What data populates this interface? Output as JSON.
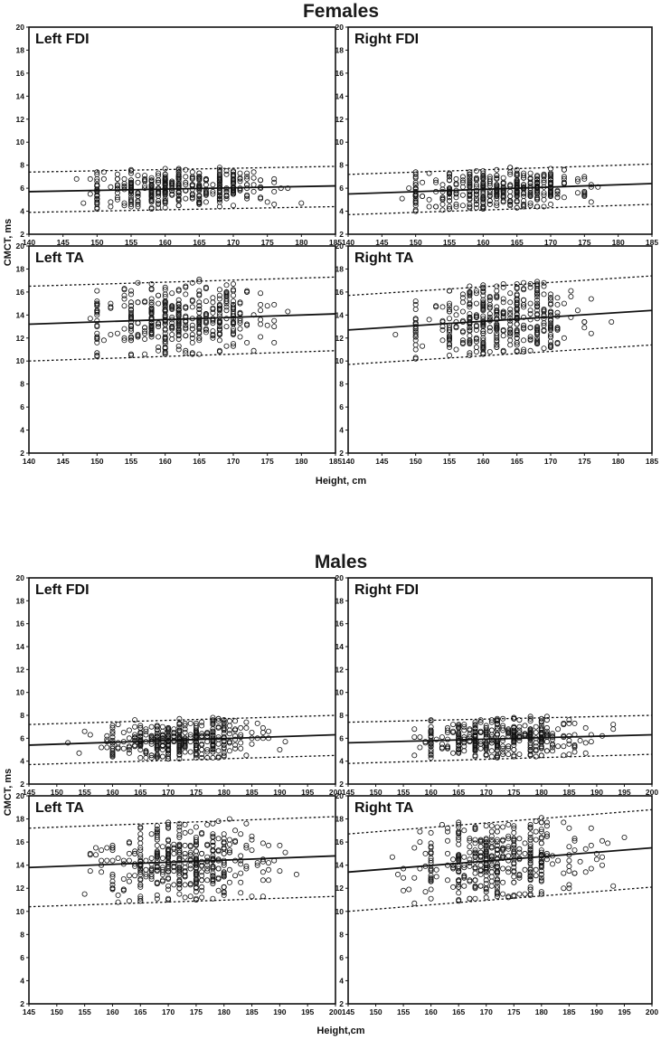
{
  "figure": {
    "sections": [
      {
        "title": "Females",
        "xlabel": "Height, cm",
        "ylabel": "CMCT, ms"
      },
      {
        "title": "Males",
        "xlabel": "Height,cm",
        "ylabel": "CMCT, ms"
      }
    ]
  },
  "chart_data": [
    {
      "type": "scatter",
      "section": "Females",
      "panel_label": "Left FDI",
      "xlim": [
        140,
        185
      ],
      "ylim": [
        2,
        20
      ],
      "xticks": [
        140,
        145,
        150,
        155,
        160,
        165,
        170,
        175,
        180,
        185
      ],
      "yticks": [
        2,
        4,
        6,
        8,
        10,
        12,
        14,
        16,
        18,
        20
      ],
      "x_range": [
        145,
        181
      ],
      "y_mean": 6.0,
      "y_sd": 0.85,
      "regression": {
        "x": [
          140,
          185
        ],
        "y": [
          5.7,
          6.2
        ]
      },
      "upper_limit": {
        "x": [
          140,
          185
        ],
        "y": [
          7.4,
          7.9
        ]
      },
      "lower_limit": {
        "x": [
          140,
          185
        ],
        "y": [
          3.9,
          4.4
        ]
      }
    },
    {
      "type": "scatter",
      "section": "Females",
      "panel_label": "Right FDI",
      "xlim": [
        140,
        185
      ],
      "ylim": [
        2,
        20
      ],
      "xticks": [
        140,
        145,
        150,
        155,
        160,
        165,
        170,
        175,
        180,
        185
      ],
      "yticks": [
        2,
        4,
        6,
        8,
        10,
        12,
        14,
        16,
        18,
        20
      ],
      "x_range": [
        145,
        181
      ],
      "y_mean": 6.0,
      "y_sd": 0.85,
      "regression": {
        "x": [
          140,
          185
        ],
        "y": [
          5.5,
          6.4
        ]
      },
      "upper_limit": {
        "x": [
          140,
          185
        ],
        "y": [
          7.2,
          8.1
        ]
      },
      "lower_limit": {
        "x": [
          140,
          185
        ],
        "y": [
          3.7,
          4.6
        ]
      }
    },
    {
      "type": "scatter",
      "section": "Females",
      "panel_label": "Left TA",
      "xlim": [
        140,
        185
      ],
      "ylim": [
        2,
        20
      ],
      "xticks": [
        140,
        145,
        150,
        155,
        160,
        165,
        170,
        175,
        180,
        185
      ],
      "yticks": [
        2,
        4,
        6,
        8,
        10,
        12,
        14,
        16,
        18,
        20
      ],
      "x_range": [
        145,
        181
      ],
      "y_mean": 13.6,
      "y_sd": 1.6,
      "regression": {
        "x": [
          140,
          185
        ],
        "y": [
          13.2,
          14.1
        ]
      },
      "upper_limit": {
        "x": [
          140,
          185
        ],
        "y": [
          16.5,
          17.3
        ]
      },
      "lower_limit": {
        "x": [
          140,
          185
        ],
        "y": [
          10.0,
          10.9
        ]
      }
    },
    {
      "type": "scatter",
      "section": "Females",
      "panel_label": "Right TA",
      "xlim": [
        140,
        185
      ],
      "ylim": [
        2,
        20
      ],
      "xticks": [
        140,
        145,
        150,
        155,
        160,
        165,
        170,
        175,
        180,
        185
      ],
      "yticks": [
        2,
        4,
        6,
        8,
        10,
        12,
        14,
        16,
        18,
        20
      ],
      "x_range": [
        145,
        181
      ],
      "y_mean": 13.4,
      "y_sd": 1.6,
      "regression": {
        "x": [
          140,
          185
        ],
        "y": [
          12.7,
          14.4
        ]
      },
      "upper_limit": {
        "x": [
          140,
          185
        ],
        "y": [
          15.7,
          17.4
        ]
      },
      "lower_limit": {
        "x": [
          140,
          185
        ],
        "y": [
          9.7,
          11.4
        ]
      }
    },
    {
      "type": "scatter",
      "section": "Males",
      "panel_label": "Left FDI",
      "xlim": [
        145,
        200
      ],
      "ylim": [
        2,
        20
      ],
      "xticks": [
        145,
        150,
        155,
        160,
        165,
        170,
        175,
        180,
        185,
        190,
        195,
        200
      ],
      "yticks": [
        2,
        4,
        6,
        8,
        10,
        12,
        14,
        16,
        18,
        20
      ],
      "x_range": [
        150,
        197
      ],
      "y_mean": 5.9,
      "y_sd": 0.85,
      "regression": {
        "x": [
          145,
          200
        ],
        "y": [
          5.4,
          6.3
        ]
      },
      "upper_limit": {
        "x": [
          145,
          200
        ],
        "y": [
          7.2,
          8.0
        ]
      },
      "lower_limit": {
        "x": [
          145,
          200
        ],
        "y": [
          3.7,
          4.5
        ]
      }
    },
    {
      "type": "scatter",
      "section": "Males",
      "panel_label": "Right FDI",
      "xlim": [
        145,
        200
      ],
      "ylim": [
        2,
        20
      ],
      "xticks": [
        145,
        150,
        155,
        160,
        165,
        170,
        175,
        180,
        185,
        190,
        195,
        200
      ],
      "yticks": [
        2,
        4,
        6,
        8,
        10,
        12,
        14,
        16,
        18,
        20
      ],
      "x_range": [
        150,
        197
      ],
      "y_mean": 5.9,
      "y_sd": 0.85,
      "regression": {
        "x": [
          145,
          200
        ],
        "y": [
          5.6,
          6.3
        ]
      },
      "upper_limit": {
        "x": [
          145,
          200
        ],
        "y": [
          7.4,
          8.0
        ]
      },
      "lower_limit": {
        "x": [
          145,
          200
        ],
        "y": [
          3.8,
          4.6
        ]
      }
    },
    {
      "type": "scatter",
      "section": "Males",
      "panel_label": "Left TA",
      "xlim": [
        145,
        200
      ],
      "ylim": [
        2,
        20
      ],
      "xticks": [
        145,
        150,
        155,
        160,
        165,
        170,
        175,
        180,
        185,
        190,
        195,
        200
      ],
      "yticks": [
        2,
        4,
        6,
        8,
        10,
        12,
        14,
        16,
        18,
        20
      ],
      "x_range": [
        150,
        197
      ],
      "y_mean": 14.3,
      "y_sd": 1.6,
      "regression": {
        "x": [
          145,
          200
        ],
        "y": [
          13.8,
          14.8
        ]
      },
      "upper_limit": {
        "x": [
          145,
          200
        ],
        "y": [
          17.2,
          18.2
        ]
      },
      "lower_limit": {
        "x": [
          145,
          200
        ],
        "y": [
          10.4,
          11.3
        ]
      }
    },
    {
      "type": "scatter",
      "section": "Males",
      "panel_label": "Right TA",
      "xlim": [
        145,
        200
      ],
      "ylim": [
        2,
        20
      ],
      "xticks": [
        145,
        150,
        155,
        160,
        165,
        170,
        175,
        180,
        185,
        190,
        195,
        200
      ],
      "yticks": [
        2,
        4,
        6,
        8,
        10,
        12,
        14,
        16,
        18,
        20
      ],
      "x_range": [
        150,
        197
      ],
      "y_mean": 14.4,
      "y_sd": 1.7,
      "regression": {
        "x": [
          145,
          200
        ],
        "y": [
          13.4,
          15.5
        ]
      },
      "upper_limit": {
        "x": [
          145,
          200
        ],
        "y": [
          16.7,
          18.8
        ]
      },
      "lower_limit": {
        "x": [
          145,
          200
        ],
        "y": [
          10.0,
          12.1
        ]
      }
    }
  ]
}
